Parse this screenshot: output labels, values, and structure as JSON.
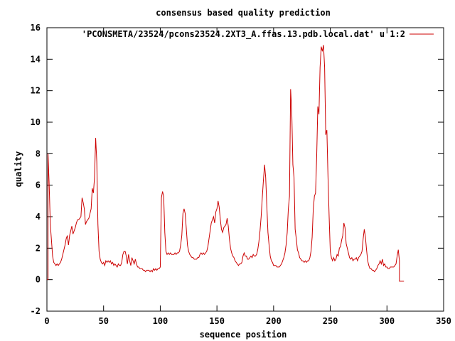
{
  "chart_data": {
    "type": "line",
    "title": "consensus based quality prediction",
    "xlabel": "sequence position",
    "ylabel": "quality",
    "xlim": [
      0,
      350
    ],
    "ylim": [
      -2,
      16
    ],
    "xticks": [
      "0",
      "50",
      "100",
      "150",
      "200",
      "250",
      "300",
      "350"
    ],
    "yticks": [
      "-2",
      "0",
      "2",
      "4",
      "6",
      "8",
      "10",
      "12",
      "14",
      "16"
    ],
    "legend_position": "top-right",
    "grid": false,
    "series": [
      {
        "name": "'PCONSMETA/23524/pcons23524.2XT3_A.ffas.13.pdb.local.dat' u 1:2",
        "color": "#cc0000",
        "points": [
          [
            0,
            0
          ],
          [
            1,
            0
          ],
          [
            1,
            8
          ],
          [
            2,
            6
          ],
          [
            3,
            3.5
          ],
          [
            4,
            2.5
          ],
          [
            5,
            1.5
          ],
          [
            6,
            1.1
          ],
          [
            7,
            1
          ],
          [
            8,
            0.9
          ],
          [
            9,
            1
          ],
          [
            10,
            0.9
          ],
          [
            11,
            1
          ],
          [
            12,
            1.1
          ],
          [
            13,
            1.3
          ],
          [
            14,
            1.6
          ],
          [
            15,
            1.9
          ],
          [
            16,
            2.2
          ],
          [
            17,
            2.6
          ],
          [
            18,
            2.8
          ],
          [
            19,
            2.2
          ],
          [
            20,
            2.8
          ],
          [
            21,
            3.1
          ],
          [
            22,
            3.4
          ],
          [
            23,
            2.9
          ],
          [
            24,
            3.1
          ],
          [
            25,
            3.3
          ],
          [
            26,
            3.6
          ],
          [
            27,
            3.8
          ],
          [
            28,
            3.8
          ],
          [
            29,
            3.9
          ],
          [
            30,
            4
          ],
          [
            31,
            5.2
          ],
          [
            32,
            4.9
          ],
          [
            33,
            4.5
          ],
          [
            34,
            3.5
          ],
          [
            35,
            3.7
          ],
          [
            36,
            3.8
          ],
          [
            37,
            3.9
          ],
          [
            38,
            4.2
          ],
          [
            39,
            4.5
          ],
          [
            40,
            5.8
          ],
          [
            41,
            5.5
          ],
          [
            42,
            6.5
          ],
          [
            43,
            9
          ],
          [
            44,
            7.5
          ],
          [
            45,
            3.5
          ],
          [
            46,
            1.8
          ],
          [
            47,
            1.3
          ],
          [
            48,
            1.1
          ],
          [
            49,
            1
          ],
          [
            50,
            1.1
          ],
          [
            51,
            0.9
          ],
          [
            52,
            1.2
          ],
          [
            53,
            1.1
          ],
          [
            54,
            1.2
          ],
          [
            55,
            1.1
          ],
          [
            56,
            1.2
          ],
          [
            57,
            1
          ],
          [
            58,
            1.1
          ],
          [
            59,
            0.9
          ],
          [
            60,
            1
          ],
          [
            61,
            0.9
          ],
          [
            62,
            0.8
          ],
          [
            63,
            1
          ],
          [
            64,
            0.9
          ],
          [
            65,
            0.9
          ],
          [
            66,
            1.1
          ],
          [
            67,
            1.6
          ],
          [
            68,
            1.8
          ],
          [
            69,
            1.8
          ],
          [
            70,
            1.5
          ],
          [
            71,
            1
          ],
          [
            72,
            1.6
          ],
          [
            73,
            1.2
          ],
          [
            74,
            0.9
          ],
          [
            75,
            1.4
          ],
          [
            76,
            1.2
          ],
          [
            77,
            1
          ],
          [
            78,
            1.3
          ],
          [
            79,
            1
          ],
          [
            80,
            0.8
          ],
          [
            81,
            0.8
          ],
          [
            82,
            0.7
          ],
          [
            83,
            0.7
          ],
          [
            84,
            0.7
          ],
          [
            85,
            0.6
          ],
          [
            86,
            0.6
          ],
          [
            87,
            0.5
          ],
          [
            88,
            0.6
          ],
          [
            89,
            0.6
          ],
          [
            90,
            0.6
          ],
          [
            91,
            0.5
          ],
          [
            92,
            0.6
          ],
          [
            93,
            0.5
          ],
          [
            94,
            0.7
          ],
          [
            95,
            0.6
          ],
          [
            96,
            0.7
          ],
          [
            97,
            0.6
          ],
          [
            98,
            0.7
          ],
          [
            99,
            0.7
          ],
          [
            100,
            0.8
          ],
          [
            101,
            5.2
          ],
          [
            102,
            5.6
          ],
          [
            103,
            5.3
          ],
          [
            104,
            3
          ],
          [
            105,
            1.8
          ],
          [
            106,
            1.6
          ],
          [
            107,
            1.7
          ],
          [
            108,
            1.6
          ],
          [
            109,
            1.7
          ],
          [
            110,
            1.6
          ],
          [
            111,
            1.6
          ],
          [
            112,
            1.6
          ],
          [
            113,
            1.7
          ],
          [
            114,
            1.6
          ],
          [
            115,
            1.7
          ],
          [
            116,
            1.7
          ],
          [
            117,
            1.8
          ],
          [
            118,
            2.2
          ],
          [
            119,
            2.8
          ],
          [
            120,
            4.2
          ],
          [
            121,
            4.5
          ],
          [
            122,
            4.2
          ],
          [
            123,
            3.2
          ],
          [
            124,
            2.2
          ],
          [
            125,
            1.8
          ],
          [
            126,
            1.6
          ],
          [
            127,
            1.5
          ],
          [
            128,
            1.4
          ],
          [
            129,
            1.4
          ],
          [
            130,
            1.3
          ],
          [
            131,
            1.3
          ],
          [
            132,
            1.3
          ],
          [
            133,
            1.4
          ],
          [
            134,
            1.4
          ],
          [
            135,
            1.6
          ],
          [
            136,
            1.7
          ],
          [
            137,
            1.6
          ],
          [
            138,
            1.7
          ],
          [
            139,
            1.6
          ],
          [
            140,
            1.7
          ],
          [
            141,
            1.8
          ],
          [
            142,
            2.1
          ],
          [
            143,
            2.6
          ],
          [
            144,
            3.1
          ],
          [
            145,
            3.6
          ],
          [
            146,
            3.8
          ],
          [
            147,
            4
          ],
          [
            148,
            3.6
          ],
          [
            149,
            4.3
          ],
          [
            150,
            4.5
          ],
          [
            151,
            5
          ],
          [
            152,
            4.6
          ],
          [
            153,
            3.8
          ],
          [
            154,
            3.2
          ],
          [
            155,
            3
          ],
          [
            156,
            3.3
          ],
          [
            157,
            3.4
          ],
          [
            158,
            3.5
          ],
          [
            159,
            3.9
          ],
          [
            160,
            3.4
          ],
          [
            161,
            2.6
          ],
          [
            162,
            2
          ],
          [
            163,
            1.7
          ],
          [
            164,
            1.5
          ],
          [
            165,
            1.4
          ],
          [
            166,
            1.2
          ],
          [
            167,
            1.1
          ],
          [
            168,
            1
          ],
          [
            169,
            0.9
          ],
          [
            170,
            1
          ],
          [
            171,
            1
          ],
          [
            172,
            1.1
          ],
          [
            173,
            1.5
          ],
          [
            174,
            1.7
          ],
          [
            175,
            1.5
          ],
          [
            176,
            1.5
          ],
          [
            177,
            1.3
          ],
          [
            178,
            1.3
          ],
          [
            179,
            1.4
          ],
          [
            180,
            1.5
          ],
          [
            181,
            1.4
          ],
          [
            182,
            1.6
          ],
          [
            183,
            1.5
          ],
          [
            184,
            1.5
          ],
          [
            185,
            1.6
          ],
          [
            186,
            1.9
          ],
          [
            187,
            2.4
          ],
          [
            188,
            3.1
          ],
          [
            189,
            4
          ],
          [
            190,
            5.2
          ],
          [
            191,
            6.3
          ],
          [
            192,
            7.3
          ],
          [
            193,
            6.5
          ],
          [
            194,
            4.7
          ],
          [
            195,
            3
          ],
          [
            196,
            2.2
          ],
          [
            197,
            1.5
          ],
          [
            198,
            1.2
          ],
          [
            199,
            1.1
          ],
          [
            200,
            0.9
          ],
          [
            201,
            0.9
          ],
          [
            202,
            0.9
          ],
          [
            203,
            0.8
          ],
          [
            204,
            0.8
          ],
          [
            205,
            0.8
          ],
          [
            206,
            0.9
          ],
          [
            207,
            1
          ],
          [
            208,
            1.2
          ],
          [
            209,
            1.4
          ],
          [
            210,
            1.7
          ],
          [
            211,
            2.2
          ],
          [
            212,
            3
          ],
          [
            213,
            4.5
          ],
          [
            214,
            5.3
          ],
          [
            215,
            12.1
          ],
          [
            216,
            10.7
          ],
          [
            217,
            7.3
          ],
          [
            218,
            6.5
          ],
          [
            219,
            3.2
          ],
          [
            220,
            2.6
          ],
          [
            221,
            1.9
          ],
          [
            222,
            1.7
          ],
          [
            223,
            1.4
          ],
          [
            224,
            1.3
          ],
          [
            225,
            1.2
          ],
          [
            226,
            1.2
          ],
          [
            227,
            1.1
          ],
          [
            228,
            1.2
          ],
          [
            229,
            1.1
          ],
          [
            230,
            1.2
          ],
          [
            231,
            1.2
          ],
          [
            232,
            1.4
          ],
          [
            233,
            1.8
          ],
          [
            234,
            2.7
          ],
          [
            235,
            4.5
          ],
          [
            236,
            5.3
          ],
          [
            237,
            5.5
          ],
          [
            238,
            7.8
          ],
          [
            239,
            11
          ],
          [
            240,
            10.5
          ],
          [
            241,
            13.5
          ],
          [
            242,
            14.8
          ],
          [
            243,
            14.5
          ],
          [
            244,
            14.9
          ],
          [
            245,
            13.5
          ],
          [
            246,
            9.2
          ],
          [
            247,
            9.5
          ],
          [
            248,
            6.5
          ],
          [
            249,
            4
          ],
          [
            250,
            1.8
          ],
          [
            251,
            1.4
          ],
          [
            252,
            1.2
          ],
          [
            253,
            1.4
          ],
          [
            254,
            1.2
          ],
          [
            255,
            1.3
          ],
          [
            256,
            1.6
          ],
          [
            257,
            1.5
          ],
          [
            258,
            2
          ],
          [
            259,
            2.1
          ],
          [
            260,
            2.5
          ],
          [
            261,
            2.8
          ],
          [
            262,
            3.6
          ],
          [
            263,
            3.3
          ],
          [
            264,
            2.3
          ],
          [
            265,
            2
          ],
          [
            266,
            1.7
          ],
          [
            267,
            1.4
          ],
          [
            268,
            1.3
          ],
          [
            269,
            1.4
          ],
          [
            270,
            1.2
          ],
          [
            271,
            1.3
          ],
          [
            272,
            1.3
          ],
          [
            273,
            1.4
          ],
          [
            274,
            1.2
          ],
          [
            275,
            1.4
          ],
          [
            276,
            1.5
          ],
          [
            277,
            1.6
          ],
          [
            278,
            1.8
          ],
          [
            279,
            2.6
          ],
          [
            280,
            3.2
          ],
          [
            281,
            2.7
          ],
          [
            282,
            1.9
          ],
          [
            283,
            1.2
          ],
          [
            284,
            0.9
          ],
          [
            285,
            0.7
          ],
          [
            286,
            0.7
          ],
          [
            287,
            0.6
          ],
          [
            288,
            0.6
          ],
          [
            289,
            0.5
          ],
          [
            290,
            0.6
          ],
          [
            291,
            0.7
          ],
          [
            292,
            0.9
          ],
          [
            293,
            1
          ],
          [
            294,
            1.2
          ],
          [
            295,
            1
          ],
          [
            296,
            1.3
          ],
          [
            297,
            0.9
          ],
          [
            298,
            1
          ],
          [
            299,
            0.8
          ],
          [
            300,
            0.8
          ],
          [
            301,
            0.7
          ],
          [
            302,
            0.7
          ],
          [
            303,
            0.8
          ],
          [
            304,
            0.8
          ],
          [
            305,
            0.8
          ],
          [
            306,
            0.8
          ],
          [
            307,
            0.9
          ],
          [
            308,
            1
          ],
          [
            309,
            1.5
          ],
          [
            310,
            1.9
          ],
          [
            311,
            1.2
          ],
          [
            311,
            -0.1
          ],
          [
            315,
            -0.1
          ]
        ]
      }
    ]
  }
}
